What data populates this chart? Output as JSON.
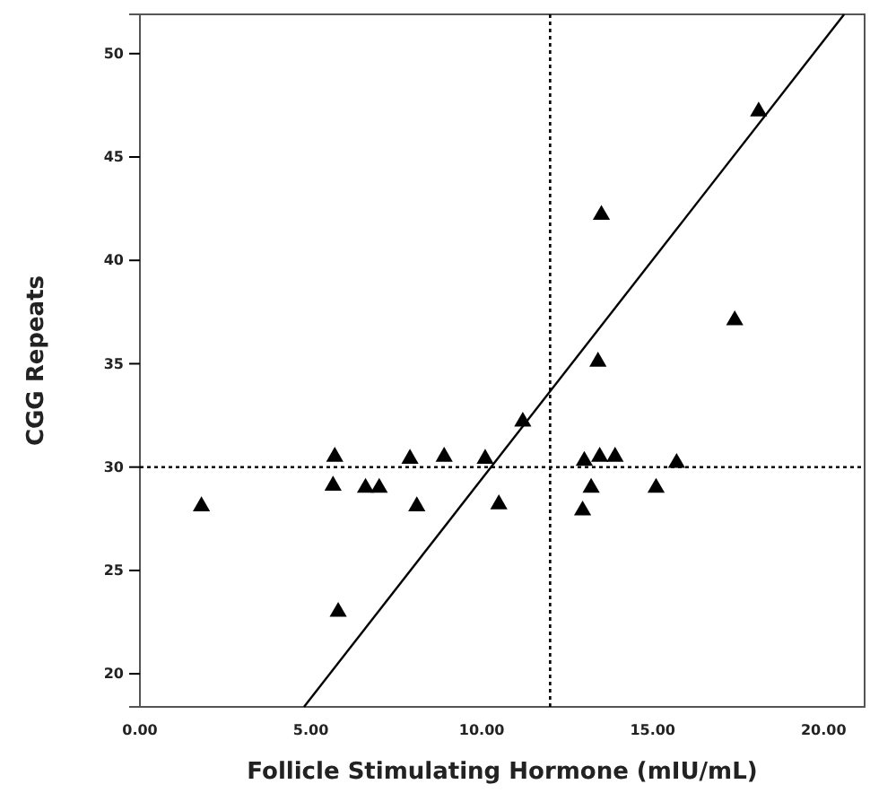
{
  "chart_data": {
    "type": "scatter",
    "xlabel": "Follicle Stimulating Hormone (mIU/mL)",
    "ylabel": "CGG Repeats",
    "xlim": [
      0,
      21.2
    ],
    "ylim": [
      18.4,
      51.9
    ],
    "xticks": [
      {
        "value": 0,
        "label": "0.00"
      },
      {
        "value": 5,
        "label": "5.00"
      },
      {
        "value": 10,
        "label": "10.00"
      },
      {
        "value": 15,
        "label": "15.00"
      },
      {
        "value": 20,
        "label": "20.00"
      }
    ],
    "yticks": [
      20,
      25,
      30,
      35,
      40,
      45,
      50
    ],
    "grid": false,
    "ref_lines": [
      {
        "axis": "x",
        "value": 12,
        "line_style": "dotted",
        "color": "#000000"
      },
      {
        "axis": "y",
        "value": 30,
        "line_style": "dotted",
        "color": "#000000"
      }
    ],
    "series": [
      {
        "color": "#000000",
        "marker": "triangle",
        "x": [
          1.8,
          5.7,
          5.65,
          5.8,
          6.6,
          7.0,
          7.9,
          8.1,
          8.9,
          10.1,
          10.5,
          11.2,
          13.0,
          12.95,
          13.2,
          13.45,
          13.9,
          15.1,
          15.7,
          13.4,
          13.5,
          17.4,
          18.1
        ],
        "values": [
          28.1,
          30.5,
          29.1,
          23.0,
          29.0,
          29.0,
          30.4,
          28.1,
          30.5,
          30.4,
          28.2,
          32.2,
          30.3,
          27.9,
          29.0,
          30.5,
          30.5,
          29.0,
          30.2,
          35.1,
          42.2,
          37.1,
          47.2
        ]
      },
      {
        "type": "line",
        "color": "#000000",
        "line_style": "solid",
        "marker": "none",
        "x": [
          4.8,
          20.6
        ],
        "values": [
          18.4,
          51.9
        ]
      }
    ]
  }
}
